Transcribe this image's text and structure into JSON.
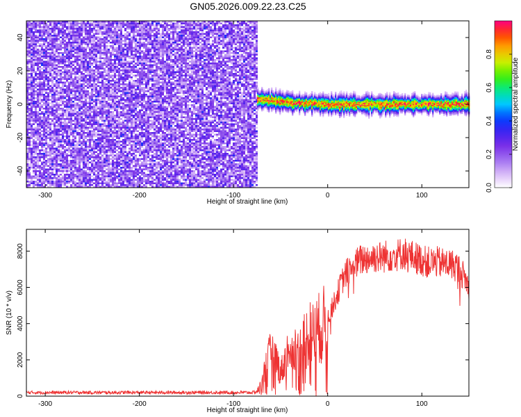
{
  "figure": {
    "title": "GN05.2026.009.22.23.C25"
  },
  "chart_data": [
    {
      "type": "heatmap",
      "name": "spectrogram",
      "xlabel": "Height of straight line (km)",
      "ylabel": "Frequency (Hz)",
      "xlim": [
        -320,
        150
      ],
      "ylim": [
        -50,
        50
      ],
      "x_ticks": [
        -300,
        -200,
        -100,
        0,
        100
      ],
      "y_ticks": [
        -40,
        -20,
        0,
        20,
        40
      ],
      "colorbar": {
        "label": "Normalized spectral amplitude",
        "range": [
          0,
          1
        ],
        "ticks": [
          0.0,
          0.2,
          0.4,
          0.6,
          0.8
        ],
        "tick_labels": [
          "0.0",
          "0.2",
          "0.4",
          "0.6",
          "0.8"
        ],
        "colormap": [
          "#ffffff",
          "#d8b8f8",
          "#a070f0",
          "#7a30e8",
          "#4020f0",
          "#0040ff",
          "#00c8ff",
          "#00e890",
          "#40f000",
          "#c8f000",
          "#ffb000",
          "#ff4000",
          "#ff0080"
        ]
      },
      "noise_region": {
        "x_range": [
          -320,
          -75
        ],
        "y_range": [
          -50,
          50
        ],
        "level": "0.1-0.3"
      },
      "signal_band": {
        "x_range": [
          -75,
          150
        ],
        "center_hz": [
          3,
          1,
          0,
          0,
          0
        ],
        "center_at_km": [
          -75,
          -40,
          0,
          80,
          150
        ],
        "width_hz": 3,
        "peak_level": 0.95
      }
    },
    {
      "type": "line",
      "name": "snr",
      "xlabel": "Height of straight line (km)",
      "ylabel": "SNR (10 * v/v)",
      "xlim": [
        -320,
        150
      ],
      "ylim": [
        0,
        9200
      ],
      "x_ticks": [
        -300,
        -200,
        -100,
        0,
        100
      ],
      "y_ticks": [
        0,
        2000,
        4000,
        6000,
        8000
      ],
      "series": [
        {
          "color": "#ee3333",
          "x": [
            -320,
            -300,
            -250,
            -200,
            -150,
            -100,
            -80,
            -75,
            -70,
            -65,
            -60,
            -55,
            -50,
            -45,
            -40,
            -35,
            -30,
            -25,
            -20,
            -15,
            -10,
            -5,
            0,
            5,
            10,
            15,
            20,
            25,
            30,
            35,
            40,
            45,
            50,
            55,
            60,
            65,
            70,
            75,
            80,
            85,
            90,
            95,
            100,
            105,
            110,
            115,
            120,
            125,
            130,
            135,
            140,
            145,
            150
          ],
          "y": [
            200,
            200,
            200,
            200,
            200,
            200,
            200,
            250,
            700,
            1800,
            2400,
            2100,
            1300,
            2000,
            2800,
            2600,
            2400,
            2900,
            3500,
            3400,
            3700,
            3900,
            4300,
            4900,
            5600,
            6300,
            6800,
            7100,
            7300,
            7500,
            7600,
            7600,
            7700,
            7650,
            7700,
            7750,
            7800,
            7800,
            7900,
            7800,
            7700,
            7600,
            7500,
            7400,
            7350,
            7400,
            7350,
            7300,
            7300,
            7200,
            7000,
            6600,
            6000
          ]
        }
      ]
    }
  ]
}
